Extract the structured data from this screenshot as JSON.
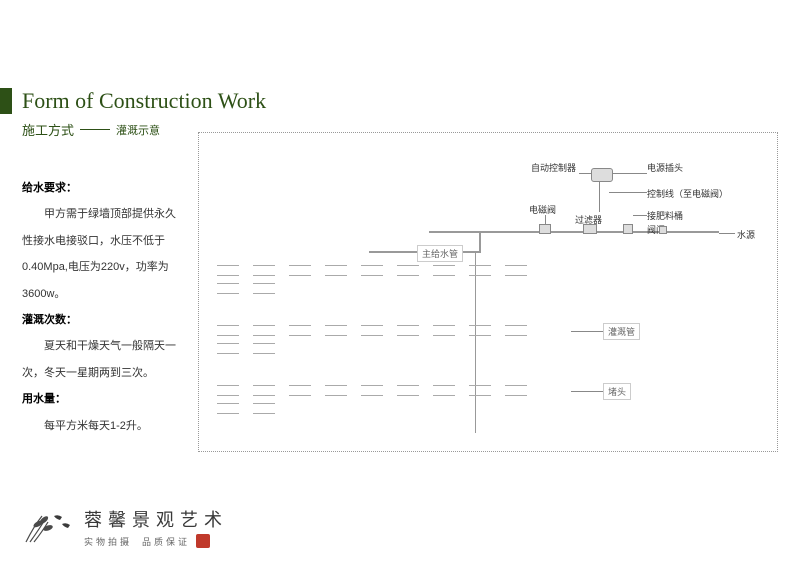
{
  "header": {
    "title_en": "Form of Construction Work",
    "title_cn": "施工方式",
    "subtitle": "灌溉示意",
    "accent_color": "#2d5016"
  },
  "text": {
    "h1": "给水要求：",
    "p1": "甲方需于绿墙顶部提供永久性接水电接驳口，水压不低于0.40Mpa,电压为220v，功率为3600w。",
    "h2": "灌溉次数：",
    "p2": "夏天和干燥天气一般隔天一次，冬天一星期两到三次。",
    "h3": "用水量：",
    "p3": "每平方米每天1-2升。"
  },
  "diagram": {
    "labels": {
      "auto_controller": "自动控制器",
      "power_plug": "电源插头",
      "control_line": "控制线（至电磁阀）",
      "solenoid": "电磁阀",
      "filter": "过滤器",
      "fertilizer": "接肥料桶",
      "valve": "阀门",
      "water_source": "水源",
      "main_pipe": "主给水管",
      "irrigation_pipe": "灌溉管",
      "end_cap": "堵头"
    },
    "dash_rows_y": [
      132,
      142,
      192,
      202,
      252,
      262
    ],
    "dash_color": "#aaaaaa",
    "pipe_color": "#999999",
    "border_color": "#999999"
  },
  "footer": {
    "brand": "蓉馨景观艺术",
    "tagline1": "实物拍摄",
    "tagline2": "品质保证"
  }
}
